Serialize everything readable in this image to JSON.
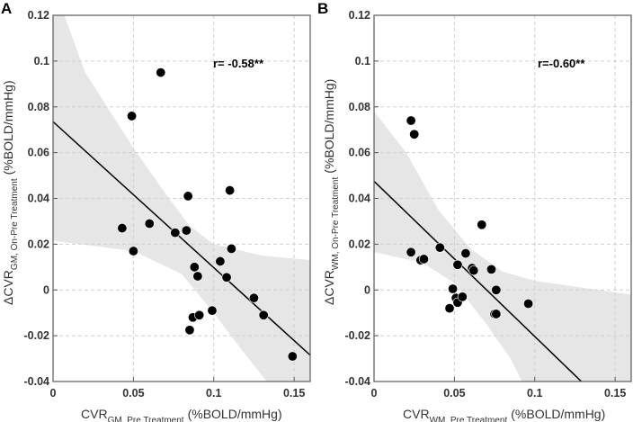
{
  "chart_data": [
    {
      "panel": "A",
      "type": "scatter",
      "annotation": "r= -0.58**",
      "xlabel": {
        "main": "CVR",
        "sub": "GM, Pre Treatment",
        "unit": "(%BOLD/mmHg)"
      },
      "ylabel": {
        "main": "ΔCVR",
        "sub": "GM, On-Pre Treatment",
        "unit": "(%BOLD/mmHg)"
      },
      "xlim": [
        0,
        0.16
      ],
      "ylim": [
        -0.04,
        0.12
      ],
      "grid": true,
      "xticks": [
        0,
        0.05,
        0.1,
        0.15
      ],
      "xtick_labels": [
        "0",
        "0.05",
        "0.1",
        "0.15"
      ],
      "yticks": [
        -0.04,
        -0.02,
        0,
        0.02,
        0.04,
        0.06,
        0.08,
        0.1,
        0.12
      ],
      "ytick_labels": [
        "-0.04",
        "-0.02",
        "0",
        "0.02",
        "0.04",
        "0.06",
        "0.08",
        "0.1",
        "0.12"
      ],
      "points": [
        [
          0.043,
          0.027
        ],
        [
          0.049,
          0.076
        ],
        [
          0.05,
          0.017
        ],
        [
          0.06,
          0.029
        ],
        [
          0.067,
          0.095
        ],
        [
          0.076,
          0.025
        ],
        [
          0.083,
          0.026
        ],
        [
          0.084,
          0.041
        ],
        [
          0.085,
          -0.0175
        ],
        [
          0.087,
          -0.012
        ],
        [
          0.088,
          0.01
        ],
        [
          0.09,
          0.006
        ],
        [
          0.091,
          -0.011
        ],
        [
          0.099,
          -0.009
        ],
        [
          0.104,
          0.0125
        ],
        [
          0.108,
          0.0055
        ],
        [
          0.11,
          0.0435
        ],
        [
          0.111,
          0.018
        ],
        [
          0.125,
          -0.0035
        ],
        [
          0.131,
          -0.011
        ],
        [
          0.149,
          -0.029
        ]
      ],
      "fit_line": [
        [
          0,
          0.0735
        ],
        [
          0.16,
          -0.0285
        ]
      ],
      "ci_upper": [
        [
          0.007,
          0.12
        ],
        [
          0.02,
          0.095
        ],
        [
          0.05,
          0.062
        ],
        [
          0.07,
          0.042
        ],
        [
          0.085,
          0.028
        ],
        [
          0.1,
          0.02
        ],
        [
          0.13,
          0.015
        ],
        [
          0.16,
          0.013
        ]
      ],
      "ci_lower": [
        [
          0,
          0.0215
        ],
        [
          0.05,
          0.017
        ],
        [
          0.08,
          0.007
        ],
        [
          0.1,
          -0.01
        ],
        [
          0.115,
          -0.024
        ],
        [
          0.133,
          -0.04
        ]
      ]
    },
    {
      "panel": "B",
      "type": "scatter",
      "annotation": "r=-0.60**",
      "xlabel": {
        "main": "CVR",
        "sub": "WM, Pre Treatment",
        "unit": "(%BOLD/mmHg)"
      },
      "ylabel": {
        "main": "ΔCVR",
        "sub": "WM, On-Pre Treatment",
        "unit": "(%BOLD/mmHg)"
      },
      "xlim": [
        0,
        0.16
      ],
      "ylim": [
        -0.04,
        0.12
      ],
      "grid": true,
      "xticks": [
        0,
        0.05,
        0.1,
        0.15
      ],
      "xtick_labels": [
        "0",
        "0.05",
        "0.1",
        "0.15"
      ],
      "yticks": [
        -0.04,
        -0.02,
        0,
        0.02,
        0.04,
        0.06,
        0.08,
        0.1,
        0.12
      ],
      "ytick_labels": [
        "-0.04",
        "-0.02",
        "0",
        "0.02",
        "0.04",
        "0.06",
        "0.08",
        "0.1",
        "0.12"
      ],
      "points": [
        [
          0.023,
          0.074
        ],
        [
          0.025,
          0.068
        ],
        [
          0.023,
          0.0165
        ],
        [
          0.029,
          0.013
        ],
        [
          0.031,
          0.0135
        ],
        [
          0.041,
          0.0185
        ],
        [
          0.047,
          -0.008
        ],
        [
          0.049,
          0.0005
        ],
        [
          0.051,
          -0.0035
        ],
        [
          0.052,
          -0.0055
        ],
        [
          0.052,
          0.011
        ],
        [
          0.055,
          -0.003
        ],
        [
          0.057,
          0.016
        ],
        [
          0.061,
          0.0095
        ],
        [
          0.062,
          0.0085
        ],
        [
          0.067,
          0.0285
        ],
        [
          0.073,
          0.009
        ],
        [
          0.075,
          -0.0105
        ],
        [
          0.076,
          -0.0105
        ],
        [
          0.076,
          0
        ],
        [
          0.096,
          -0.006
        ]
      ],
      "fit_line": [
        [
          0,
          0.0475
        ],
        [
          0.129,
          -0.04
        ]
      ],
      "ci_upper": [
        [
          0,
          0.078
        ],
        [
          0.02,
          0.06
        ],
        [
          0.04,
          0.035
        ],
        [
          0.06,
          0.018
        ],
        [
          0.08,
          0.008
        ],
        [
          0.1,
          0.004
        ],
        [
          0.13,
          0.001
        ],
        [
          0.16,
          -0.002
        ]
      ],
      "ci_lower": [
        [
          0,
          0.0165
        ],
        [
          0.03,
          0.012
        ],
        [
          0.05,
          0.003
        ],
        [
          0.07,
          -0.015
        ],
        [
          0.085,
          -0.03
        ],
        [
          0.092,
          -0.04
        ]
      ]
    }
  ]
}
